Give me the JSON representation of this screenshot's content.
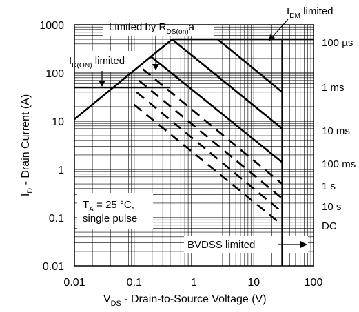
{
  "chart_data": {
    "type": "line",
    "scale": {
      "x": "log",
      "y": "log"
    },
    "xlim": [
      0.01,
      100
    ],
    "ylim": [
      0.01,
      1000
    ],
    "grid": true,
    "xlabel": {
      "main": "V",
      "sub": "DS",
      "rest": " - Drain-to-Source Voltage (V)"
    },
    "ylabel": {
      "main": "I",
      "sub": "D",
      "rest": " - Drain Current (A)"
    },
    "x_ticks": [
      {
        "value": 0.01,
        "label": "0.01"
      },
      {
        "value": 0.1,
        "label": "0.1"
      },
      {
        "value": 1,
        "label": "1"
      },
      {
        "value": 10,
        "label": "10"
      },
      {
        "value": 100,
        "label": "100"
      }
    ],
    "y_ticks": [
      {
        "value": 0.01,
        "label": "0.01"
      },
      {
        "value": 0.1,
        "label": "0.1"
      },
      {
        "value": 1,
        "label": "1"
      },
      {
        "value": 10,
        "label": "10"
      },
      {
        "value": 100,
        "label": "100"
      },
      {
        "value": 1000,
        "label": "1000"
      }
    ],
    "limits": {
      "rds_on": {
        "label_main": "Limited by R",
        "label_sub": "DS(on)",
        "label_sup": "a",
        "points": [
          [
            0.01,
            11
          ],
          [
            0.43,
            500
          ]
        ]
      },
      "id_on": {
        "label_main": "I",
        "label_sub": "D(ON)",
        "label_rest": " limited",
        "value": 50
      },
      "idm": {
        "label_main": "I",
        "label_sub": "DM",
        "label_rest": " limited",
        "value": 500
      },
      "bvdss": {
        "label": "BVDSS limited",
        "value": 30
      }
    },
    "conditions": {
      "line1_main": "T",
      "line1_sub": "A",
      "line1_rest": " = 25 °C,",
      "line2": "single pulse"
    },
    "series": [
      {
        "name": "100 µs",
        "style": "solid",
        "points": [
          [
            2.5,
            500
          ],
          [
            30,
            40
          ]
        ]
      },
      {
        "name": "1 ms",
        "style": "solid",
        "points": [
          [
            0.43,
            500
          ],
          [
            30,
            7
          ]
        ]
      },
      {
        "name": "10 ms",
        "style": "solid",
        "points": [
          [
            0.19,
            220
          ],
          [
            30,
            1.4
          ]
        ]
      },
      {
        "name": "100 ms",
        "style": "dashed",
        "points": [
          [
            0.14,
            120
          ],
          [
            30,
            0.5
          ]
        ]
      },
      {
        "name": "1 s",
        "style": "dashed",
        "points": [
          [
            0.12,
            70
          ],
          [
            30,
            0.25
          ]
        ]
      },
      {
        "name": "10 s",
        "style": "dashed",
        "points": [
          [
            0.11,
            40
          ],
          [
            30,
            0.13
          ]
        ]
      },
      {
        "name": "DC",
        "style": "dashed",
        "points": [
          [
            0.1,
            22
          ],
          [
            30,
            0.07
          ]
        ]
      }
    ]
  }
}
